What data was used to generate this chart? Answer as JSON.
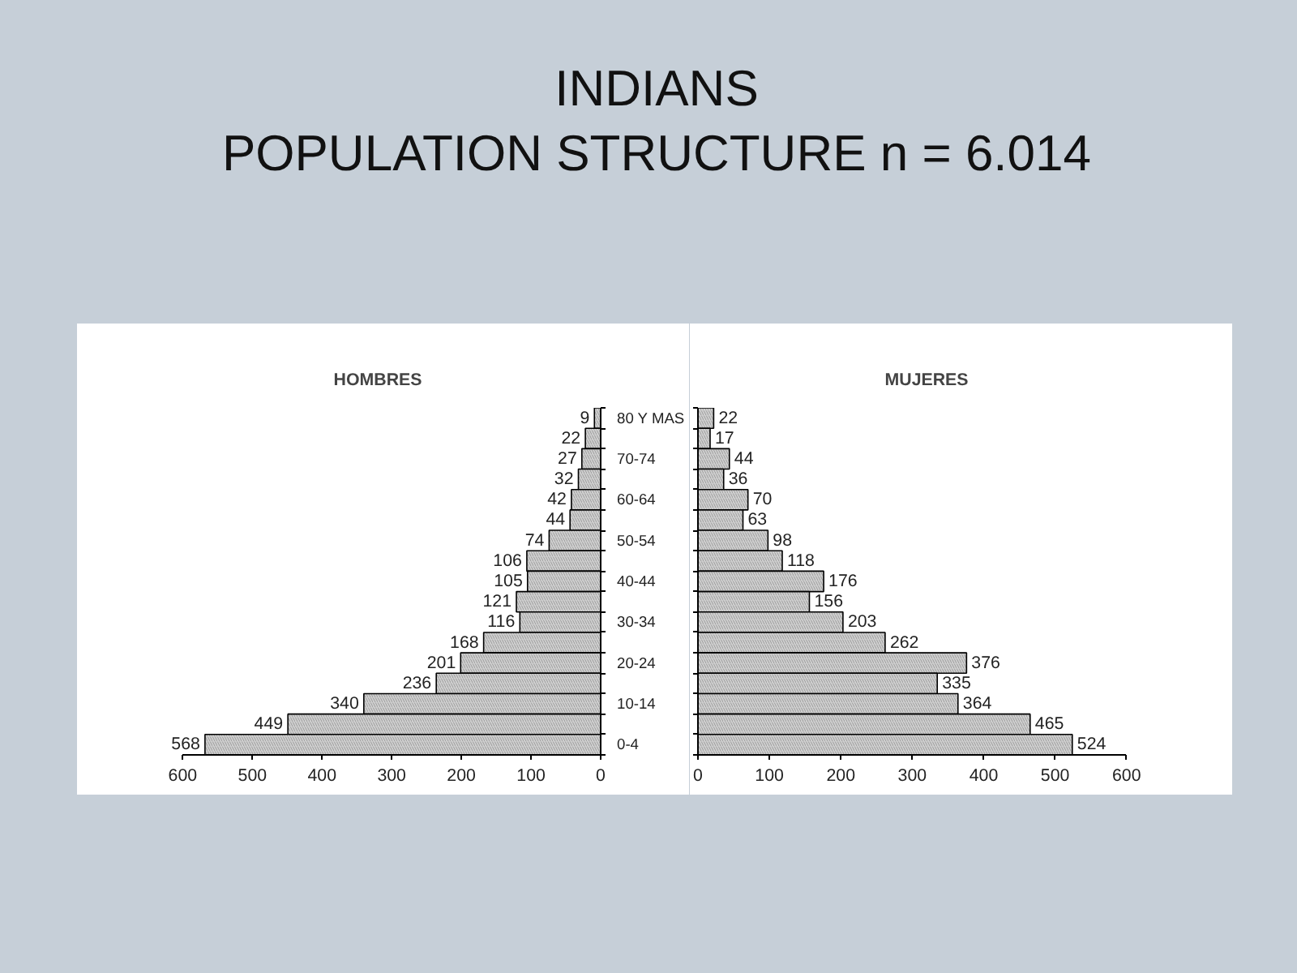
{
  "chart_data": [
    {
      "type": "bar",
      "orientation": "horizontal",
      "title": "HOMBRES",
      "annotations": [
        "INDIANS\nPOPULATION STRUCTURE n = 6.014"
      ],
      "categories": [
        "80 Y MAS",
        null,
        "70-74",
        null,
        "60-64",
        null,
        "50-54",
        null,
        "40-44",
        null,
        "30-34",
        null,
        "20-24",
        null,
        "10-14",
        null,
        "0-4"
      ],
      "values": [
        9,
        22,
        27,
        32,
        42,
        44,
        74,
        106,
        105,
        121,
        116,
        168,
        201,
        236,
        340,
        449,
        568
      ],
      "color": "#d0d0d0",
      "xlim": [
        600,
        0
      ],
      "xticks": [
        600,
        500,
        400,
        300,
        200,
        100,
        0
      ],
      "data_labels": true
    },
    {
      "type": "bar",
      "orientation": "horizontal",
      "title": "MUJERES",
      "categories": [
        null,
        null,
        null,
        null,
        null,
        null,
        null,
        null,
        null,
        null,
        null,
        null,
        null,
        null,
        null,
        null,
        null
      ],
      "values": [
        22,
        17,
        44,
        36,
        70,
        63,
        98,
        118,
        176,
        156,
        203,
        262,
        376,
        335,
        364,
        465,
        524
      ],
      "color": "#d0d0d0",
      "xlim": [
        0,
        600
      ],
      "xticks": [
        0,
        100,
        200,
        300,
        400,
        500,
        600
      ],
      "data_labels": true
    }
  ]
}
